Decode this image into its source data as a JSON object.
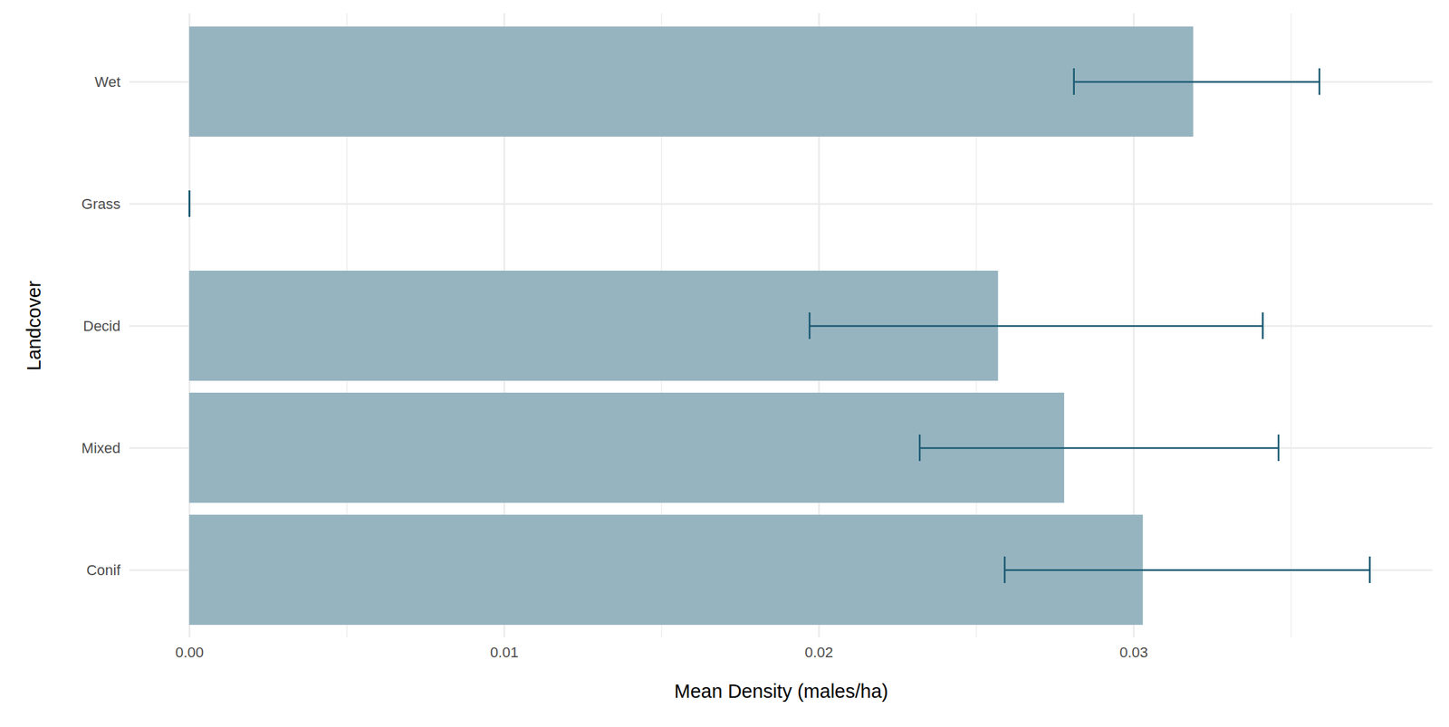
{
  "chart_data": {
    "type": "bar",
    "orientation": "horizontal",
    "x_label": "Mean Density (males/ha)",
    "y_label": "Landcover",
    "categories": [
      "Wet",
      "Grass",
      "Decid",
      "Mixed",
      "Conif"
    ],
    "values": [
      0.0319,
      0,
      0.0257,
      0.0278,
      0.0303
    ],
    "error_low": [
      0.0281,
      0,
      0.0197,
      0.0232,
      0.0259
    ],
    "error_high": [
      0.0359,
      0,
      0.0341,
      0.0346,
      0.0375
    ],
    "color": "#96b4c0",
    "error_color": "#1a5a72",
    "xlim": [
      -0.0019,
      0.0395
    ],
    "xticks": [
      {
        "value": 0,
        "label": "0.00"
      },
      0.01,
      0.02,
      0.03
    ],
    "grid": true
  }
}
